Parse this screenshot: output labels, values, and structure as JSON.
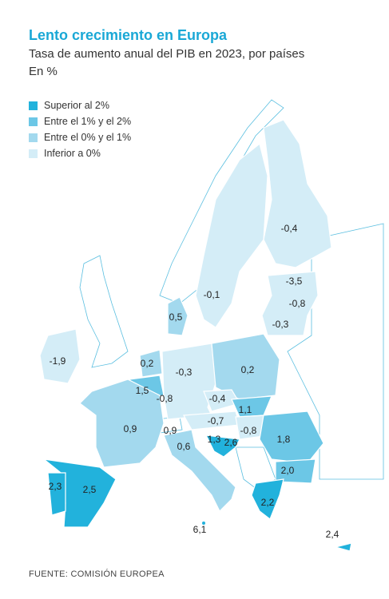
{
  "header": {
    "title": "Lento crecimiento en Europa",
    "subtitle": "Tasa de aumento anual del PIB en 2023, por países",
    "unit": "En %"
  },
  "legend": [
    "Superior al 2%",
    "Entre el 1% y el 2%",
    "Entre el 0% y el 1%",
    "Inferior a 0%"
  ],
  "map": {
    "labels": [
      "-0,4",
      "-3,5",
      "-0,8",
      "-0,3",
      "-0,1",
      "0,5",
      "-1,9",
      "0,2",
      "1,5",
      "-0,8",
      "-0,3",
      "0,2",
      "-0,4",
      "1,1",
      "-0,7",
      "-0,8",
      "0,9",
      "0,9",
      "0,6",
      "1,3",
      "2,6",
      "1,8",
      "2,0",
      "2,5",
      "2,3",
      "2,2",
      "6,1",
      "2,4"
    ]
  },
  "source": "FUENTE: COMISIÓN EUROPEA"
}
